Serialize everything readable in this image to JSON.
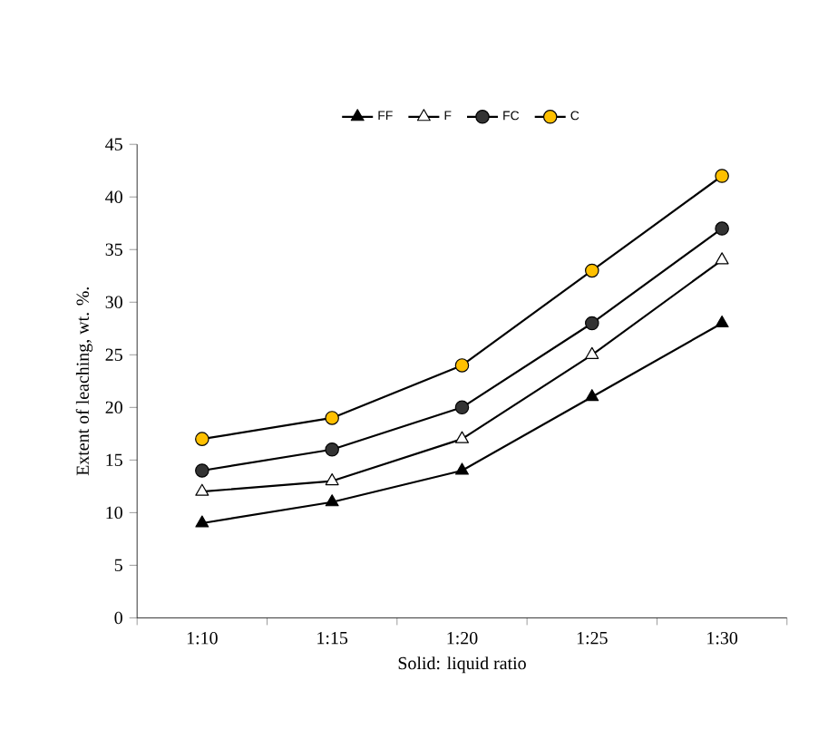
{
  "chart_data": {
    "type": "line",
    "xlabel": "Solid: liquid ratio",
    "ylabel": "Extent of leaching, wt. %.",
    "categories": [
      "1:10",
      "1:15",
      "1:20",
      "1:25",
      "1:30"
    ],
    "series": [
      {
        "name": "FF",
        "color": "#000000",
        "marker": "triangle",
        "values": [
          9,
          11,
          14,
          21,
          28
        ]
      },
      {
        "name": "F",
        "color": "#ffffff",
        "marker": "triangle",
        "values": [
          12,
          13,
          17,
          25,
          34
        ]
      },
      {
        "name": "FC",
        "color": "#333333",
        "marker": "circle",
        "values": [
          14,
          16,
          20,
          28,
          37
        ]
      },
      {
        "name": "C",
        "color": "#ffc000",
        "marker": "circle",
        "values": [
          17,
          19,
          24,
          33,
          42
        ]
      }
    ],
    "ylim": [
      0,
      45
    ],
    "yticks": [
      0,
      5,
      10,
      15,
      20,
      25,
      30,
      35,
      40,
      45
    ],
    "grid": false,
    "legend": "top",
    "line_style": "solid"
  }
}
